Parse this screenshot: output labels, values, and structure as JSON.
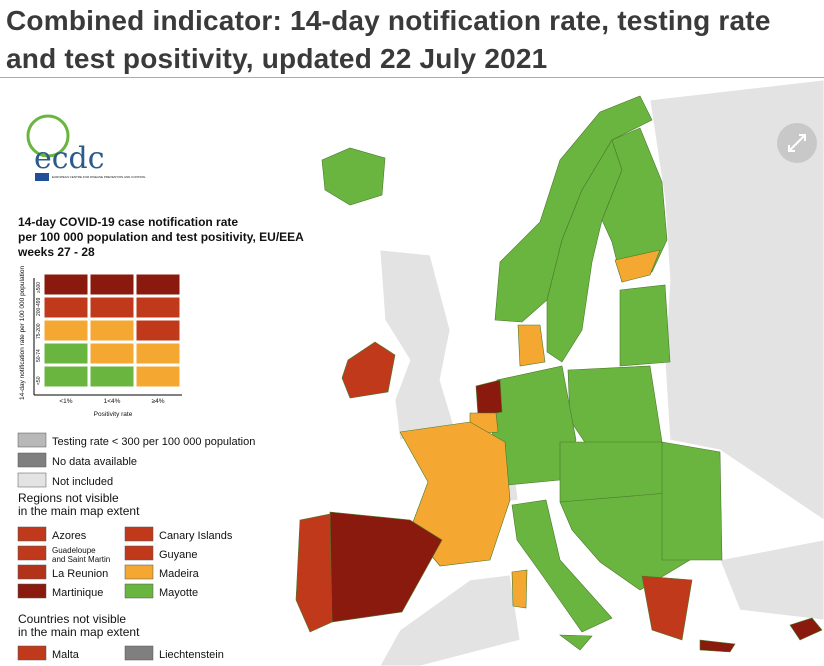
{
  "title": "Combined indicator: 14-day notification rate, testing rate and test positivity, updated 22 July 2021",
  "logo": {
    "name": "ecdc",
    "subtitle": "EUROPEAN CENTRE FOR DISEASE PREVENTION AND CONTROL"
  },
  "legend": {
    "title": [
      "14-day COVID-19 case notification rate",
      "per 100 000 population and test positivity, EU/EEA",
      "weeks 27 - 28"
    ],
    "y_label": "14-day notification rate per 100 000 population",
    "rows": [
      "≥500",
      "200-499",
      "75-200",
      "50-74",
      "<50"
    ],
    "x_label": "Positivity rate",
    "columns": [
      "<1%",
      "1<4%",
      "≥4%"
    ],
    "matrix": [
      [
        "#8b1a0e",
        "#8b1a0e",
        "#8b1a0e"
      ],
      [
        "#c0391b",
        "#c0391b",
        "#c0391b"
      ],
      [
        "#f4a731",
        "#f4a731",
        "#c0391b"
      ],
      [
        "#6ab540",
        "#f4a731",
        "#f4a731"
      ],
      [
        "#6ab540",
        "#6ab540",
        "#f4a731"
      ]
    ]
  },
  "status": [
    {
      "label": "Testing rate < 300 per 100 000 population",
      "color": "#b8b8b8"
    },
    {
      "label": "No data available",
      "color": "#7f7f7f"
    },
    {
      "label": "Not included",
      "color": "#e3e3e3"
    }
  ],
  "regions": {
    "title": [
      "Regions not visible",
      "in the main map extent"
    ],
    "items": [
      {
        "label": "Azores",
        "color": "#c0391b"
      },
      {
        "label": "Canary Islands",
        "color": "#c0391b"
      },
      {
        "label": [
          "Guadeloupe",
          "and Saint Martin"
        ],
        "color": "#c0391b"
      },
      {
        "label": "Guyane",
        "color": "#c0391b"
      },
      {
        "label": "La Reunion",
        "color": "#b3331a"
      },
      {
        "label": "Madeira",
        "color": "#f4a731"
      },
      {
        "label": "Martinique",
        "color": "#8b1a0e"
      },
      {
        "label": "Mayotte",
        "color": "#6ab540"
      }
    ]
  },
  "countries": {
    "title": [
      "Countries not visible",
      "in the main map extent"
    ],
    "items": [
      {
        "label": "Malta",
        "color": "#c0391b"
      },
      {
        "label": "Liechtenstein",
        "color": "#7f7f7f"
      }
    ]
  }
}
